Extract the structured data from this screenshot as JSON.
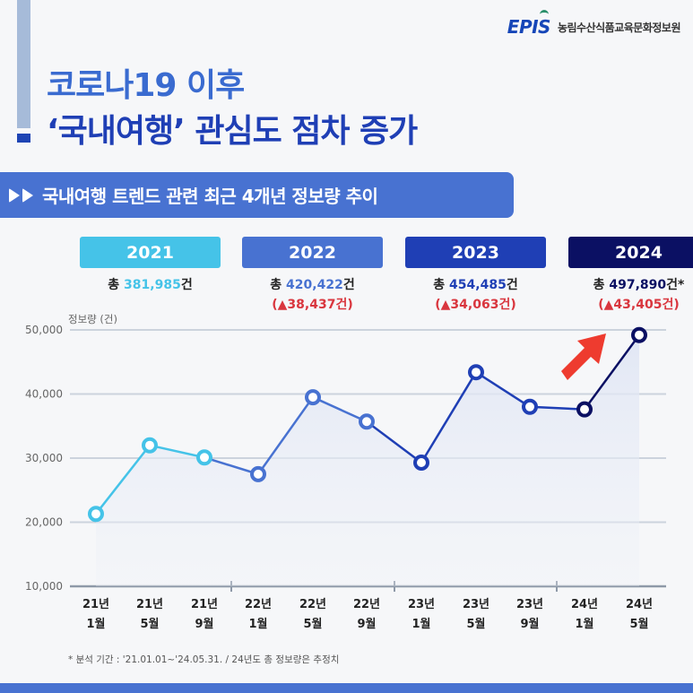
{
  "brand": {
    "logo_mark": "EPIS",
    "org_name": "농림수산식품교육문화정보원"
  },
  "title": {
    "line1": "코로나19 이후",
    "line2": "‘국내여행’ 관심도 점차 증가"
  },
  "section": {
    "icon": "double-play-icon",
    "label": "국내여행 트렌드 관련 최근 4개년 정보량 추이"
  },
  "years": [
    {
      "year": "2021",
      "color": "#45c3e8",
      "total_prefix": "총 ",
      "total": "381,985",
      "total_suffix": "건",
      "delta": ""
    },
    {
      "year": "2022",
      "color": "#4872d1",
      "total_prefix": "총 ",
      "total": "420,422",
      "total_suffix": "건",
      "delta": "(▲38,437건)"
    },
    {
      "year": "2023",
      "color": "#1f3fb5",
      "total_prefix": "총 ",
      "total": "454,485",
      "total_suffix": "건",
      "delta": "(▲34,063건)"
    },
    {
      "year": "2024",
      "color": "#0b1063",
      "total_prefix": "총 ",
      "total": "497,890",
      "total_suffix": "건*",
      "delta": "(▲43,405건)"
    }
  ],
  "chart_data": {
    "type": "line",
    "title": "국내여행 트렌드 관련 최근 4개년 정보량 추이",
    "ylabel": "정보량 (건)",
    "xlabel": "",
    "ylim": [
      10000,
      50000
    ],
    "yticks": [
      "50,000",
      "40,000",
      "30,000",
      "20,000",
      "10,000"
    ],
    "grid": true,
    "categories": [
      "21년 1월",
      "21년 5월",
      "21년 9월",
      "22년 1월",
      "22년 5월",
      "22년 9월",
      "23년 1월",
      "23년 5월",
      "23년 9월",
      "24년 1월",
      "24년 5월"
    ],
    "x_labels": [
      [
        "21년",
        "1월"
      ],
      [
        "21년",
        "5월"
      ],
      [
        "21년",
        "9월"
      ],
      [
        "22년",
        "1월"
      ],
      [
        "22년",
        "5월"
      ],
      [
        "22년",
        "9월"
      ],
      [
        "23년",
        "1월"
      ],
      [
        "23년",
        "5월"
      ],
      [
        "23년",
        "9월"
      ],
      [
        "24년",
        "1월"
      ],
      [
        "24년",
        "5월"
      ]
    ],
    "series": [
      {
        "name": "정보량",
        "values": [
          21300,
          32000,
          30100,
          27500,
          39500,
          35700,
          29300,
          43400,
          38000,
          37600,
          49200
        ]
      }
    ],
    "year_colors": [
      "#45c3e8",
      "#4872d1",
      "#1f3fb5",
      "#0b1063"
    ],
    "annotation": "red-up-arrow near 24년 5월"
  },
  "footnote": "* 분석 기간 : '21.01.01~'24.05.31. / 24년도 총 정보량은 추정치"
}
